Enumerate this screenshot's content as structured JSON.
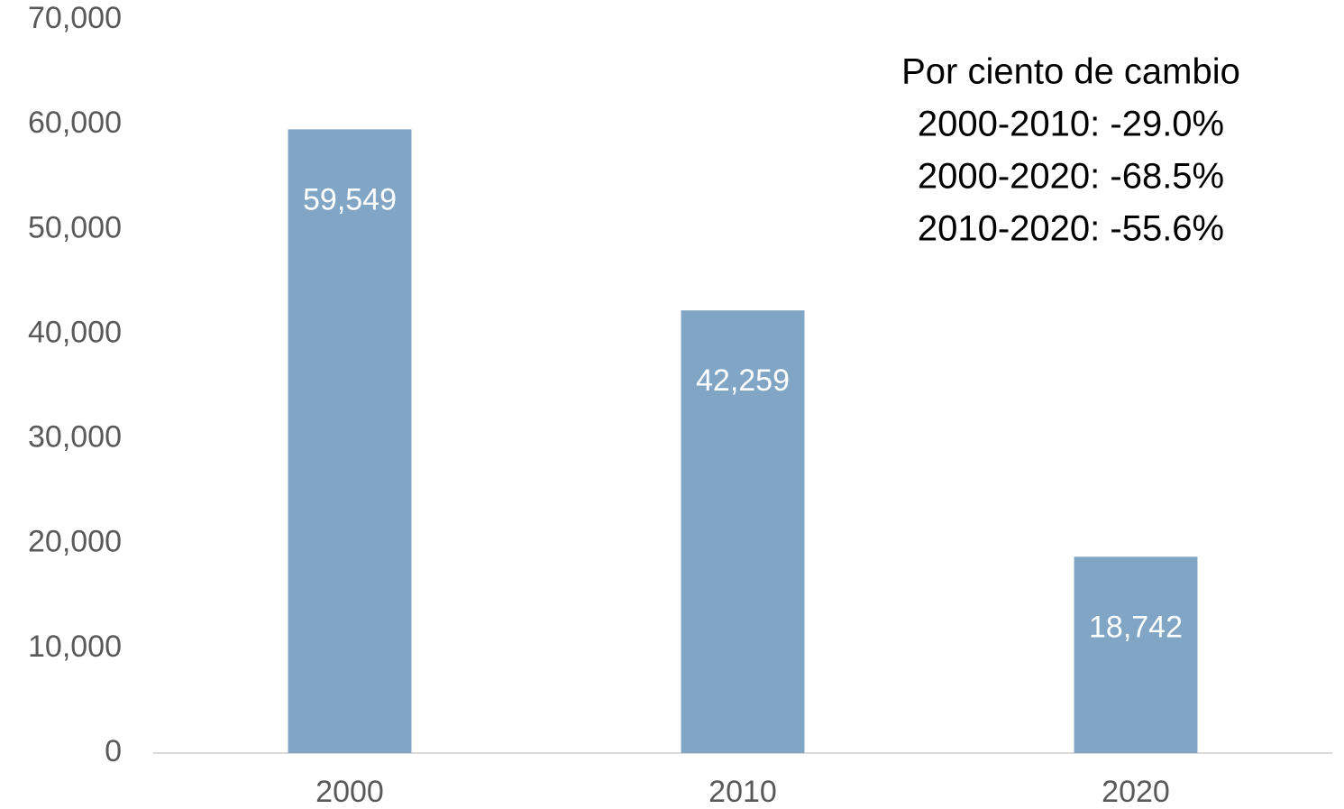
{
  "chart_data": {
    "type": "bar",
    "categories": [
      "2000",
      "2010",
      "2020"
    ],
    "values": [
      59549,
      42259,
      18742
    ],
    "value_labels": [
      "59,549",
      "42,259",
      "18,742"
    ],
    "color": "#81a5c4",
    "ylim": [
      0,
      70000
    ],
    "yticks": [
      0,
      {
        "value": 10000,
        "label": "10,000"
      },
      {
        "value": 20000,
        "label": "20,000"
      },
      {
        "value": 30000,
        "label": "30,000"
      },
      {
        "value": 40000,
        "label": "40,000"
      },
      {
        "value": 50000,
        "label": "50,000"
      },
      {
        "value": 60000,
        "label": "60,000"
      },
      {
        "value": 70000,
        "label": "70,000"
      }
    ],
    "grid": false,
    "annotations": [
      "Por ciento de cambio",
      "2000-2010: -29.0%",
      "2000-2020: -68.5%",
      "2010-2020: -55.6%"
    ]
  }
}
